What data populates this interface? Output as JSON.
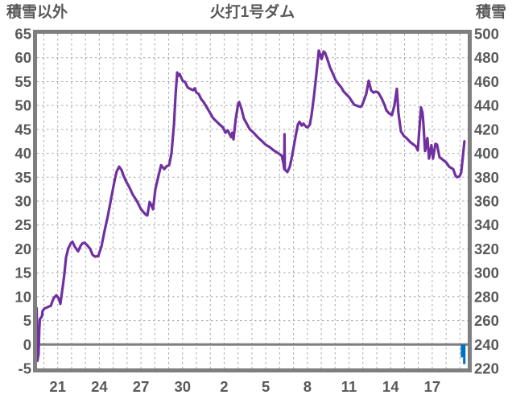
{
  "chart_data": {
    "type": "line",
    "title": "火打1号ダム",
    "left_axis": {
      "title": "積雪以外",
      "min": -5,
      "max": 65,
      "step": 5,
      "tick_labels": [
        "65",
        "60",
        "55",
        "50",
        "45",
        "40",
        "35",
        "30",
        "25",
        "20",
        "15",
        "10",
        "5",
        "0",
        "-5"
      ]
    },
    "right_axis": {
      "title": "積雪",
      "min": 220,
      "max": 500,
      "step": 20,
      "tick_labels": [
        "500",
        "480",
        "460",
        "440",
        "420",
        "400",
        "380",
        "360",
        "340",
        "320",
        "300",
        "280",
        "260",
        "240",
        "220"
      ]
    },
    "x_axis": {
      "tick_labels": [
        "21",
        "24",
        "27",
        "30",
        "2",
        "5",
        "8",
        "11",
        "14",
        "17"
      ],
      "tick_day_offsets": [
        0,
        3,
        6,
        9,
        12,
        15,
        18,
        21,
        24,
        27
      ],
      "grid_day_min": -1,
      "grid_day_max": 29,
      "grid_every_days": 1
    },
    "zero_line_value": 0,
    "grid_on": true,
    "series": [
      {
        "id": "snow-depth-line",
        "color": "#7030A0",
        "width": 3.2,
        "points": [
          [
            -1.52,
            7.6
          ],
          [
            -1.46,
            -3.4
          ],
          [
            -1.38,
            -2.0
          ],
          [
            -1.33,
            3.1
          ],
          [
            -1.29,
            5.3
          ],
          [
            -1.14,
            5.9
          ],
          [
            -1.09,
            7.0
          ],
          [
            -0.97,
            7.5
          ],
          [
            -0.68,
            7.9
          ],
          [
            -0.5,
            8.1
          ],
          [
            -0.39,
            9.0
          ],
          [
            -0.27,
            9.8
          ],
          [
            -0.1,
            10.3
          ],
          [
            0.08,
            9.6
          ],
          [
            0.19,
            8.5
          ],
          [
            0.37,
            12.3
          ],
          [
            0.48,
            14.8
          ],
          [
            0.6,
            18.2
          ],
          [
            0.77,
            20.2
          ],
          [
            0.95,
            21.2
          ],
          [
            1.06,
            21.5
          ],
          [
            1.24,
            20.4
          ],
          [
            1.47,
            19.5
          ],
          [
            1.64,
            20.6
          ],
          [
            1.76,
            21.1
          ],
          [
            1.93,
            21.3
          ],
          [
            2.11,
            20.8
          ],
          [
            2.34,
            20.0
          ],
          [
            2.51,
            18.8
          ],
          [
            2.69,
            18.4
          ],
          [
            2.92,
            18.5
          ],
          [
            3.15,
            20.5
          ],
          [
            3.38,
            23.8
          ],
          [
            3.62,
            27.0
          ],
          [
            3.85,
            30.5
          ],
          [
            4.08,
            34.0
          ],
          [
            4.25,
            36.2
          ],
          [
            4.43,
            37.2
          ],
          [
            4.6,
            36.5
          ],
          [
            4.72,
            35.5
          ],
          [
            4.95,
            34.0
          ],
          [
            5.18,
            32.8
          ],
          [
            5.42,
            31.3
          ],
          [
            5.71,
            30.0
          ],
          [
            6.0,
            28.3
          ],
          [
            6.34,
            27.2
          ],
          [
            6.46,
            27.0
          ],
          [
            6.63,
            29.8
          ],
          [
            6.75,
            29.2
          ],
          [
            6.87,
            28.3
          ],
          [
            7.04,
            32.5
          ],
          [
            7.27,
            35.4
          ],
          [
            7.45,
            37.5
          ],
          [
            7.68,
            36.7
          ],
          [
            7.85,
            37.3
          ],
          [
            8.03,
            37.5
          ],
          [
            8.2,
            40.0
          ],
          [
            8.38,
            46.0
          ],
          [
            8.49,
            52.0
          ],
          [
            8.61,
            56.9
          ],
          [
            8.69,
            56.2
          ],
          [
            8.78,
            56.6
          ],
          [
            9.01,
            55.2
          ],
          [
            9.19,
            54.9
          ],
          [
            9.36,
            53.8
          ],
          [
            9.59,
            53.4
          ],
          [
            9.77,
            53.2
          ],
          [
            9.88,
            53.6
          ],
          [
            10.0,
            52.7
          ],
          [
            10.17,
            52.4
          ],
          [
            10.35,
            51.3
          ],
          [
            10.52,
            50.7
          ],
          [
            10.75,
            49.6
          ],
          [
            11.04,
            48.2
          ],
          [
            11.22,
            47.3
          ],
          [
            11.51,
            46.5
          ],
          [
            11.68,
            46.0
          ],
          [
            11.92,
            45.4
          ],
          [
            12.09,
            44.3
          ],
          [
            12.26,
            44.8
          ],
          [
            12.5,
            43.4
          ],
          [
            12.58,
            44.3
          ],
          [
            12.67,
            42.9
          ],
          [
            12.84,
            47.3
          ],
          [
            13.02,
            50.5
          ],
          [
            13.08,
            50.7
          ],
          [
            13.25,
            49.3
          ],
          [
            13.42,
            47.3
          ],
          [
            13.66,
            46.0
          ],
          [
            13.83,
            45.1
          ],
          [
            14.12,
            44.3
          ],
          [
            14.41,
            43.4
          ],
          [
            14.7,
            42.6
          ],
          [
            14.99,
            41.8
          ],
          [
            15.28,
            41.3
          ],
          [
            15.57,
            40.6
          ],
          [
            15.86,
            40.1
          ],
          [
            16.15,
            39.5
          ],
          [
            16.27,
            38.0
          ],
          [
            16.33,
            36.7
          ],
          [
            16.35,
            44.0
          ],
          [
            16.37,
            36.6
          ],
          [
            16.44,
            36.4
          ],
          [
            16.56,
            36.1
          ],
          [
            16.73,
            37.2
          ],
          [
            16.91,
            39.7
          ],
          [
            17.14,
            43.4
          ],
          [
            17.31,
            46.0
          ],
          [
            17.43,
            46.6
          ],
          [
            17.6,
            45.8
          ],
          [
            17.72,
            46.2
          ],
          [
            17.89,
            45.6
          ],
          [
            18.01,
            45.4
          ],
          [
            18.18,
            46.0
          ],
          [
            18.3,
            48.0
          ],
          [
            18.47,
            51.8
          ],
          [
            18.59,
            55.0
          ],
          [
            18.7,
            58.0
          ],
          [
            18.82,
            61.5
          ],
          [
            18.94,
            60.5
          ],
          [
            19.02,
            59.7
          ],
          [
            19.17,
            61.3
          ],
          [
            19.28,
            61.0
          ],
          [
            19.46,
            59.5
          ],
          [
            19.63,
            58.0
          ],
          [
            19.86,
            56.5
          ],
          [
            20.04,
            55.3
          ],
          [
            20.21,
            54.6
          ],
          [
            20.44,
            53.8
          ],
          [
            20.62,
            52.9
          ],
          [
            20.79,
            52.4
          ],
          [
            21.02,
            51.7
          ],
          [
            21.2,
            50.9
          ],
          [
            21.37,
            50.2
          ],
          [
            21.6,
            49.9
          ],
          [
            21.84,
            49.7
          ],
          [
            21.95,
            50.1
          ],
          [
            22.24,
            52.4
          ],
          [
            22.42,
            55.2
          ],
          [
            22.59,
            53.2
          ],
          [
            22.77,
            52.7
          ],
          [
            22.94,
            52.9
          ],
          [
            23.11,
            52.7
          ],
          [
            23.35,
            51.5
          ],
          [
            23.58,
            50.0
          ],
          [
            23.69,
            49.0
          ],
          [
            23.87,
            48.4
          ],
          [
            24.1,
            48.0
          ],
          [
            24.27,
            50.0
          ],
          [
            24.45,
            53.5
          ],
          [
            24.56,
            48.5
          ],
          [
            24.74,
            44.6
          ],
          [
            24.97,
            43.6
          ],
          [
            25.14,
            43.2
          ],
          [
            25.43,
            42.3
          ],
          [
            25.67,
            41.8
          ],
          [
            25.84,
            41.4
          ],
          [
            25.96,
            40.6
          ],
          [
            26.07,
            45.0
          ],
          [
            26.19,
            49.6
          ],
          [
            26.3,
            48.5
          ],
          [
            26.36,
            46.3
          ],
          [
            26.48,
            40.5
          ],
          [
            26.65,
            43.2
          ],
          [
            26.77,
            38.9
          ],
          [
            26.94,
            41.7
          ],
          [
            27.06,
            38.9
          ],
          [
            27.23,
            42.0
          ],
          [
            27.35,
            41.8
          ],
          [
            27.52,
            39.2
          ],
          [
            27.75,
            38.7
          ],
          [
            28.04,
            38.0
          ],
          [
            28.22,
            37.2
          ],
          [
            28.51,
            36.7
          ],
          [
            28.68,
            35.3
          ],
          [
            28.8,
            35.0
          ],
          [
            28.97,
            35.2
          ],
          [
            29.09,
            36.0
          ],
          [
            29.2,
            39.0
          ],
          [
            29.32,
            42.5
          ]
        ]
      }
    ],
    "bars": [
      {
        "id": "blue-bar-upper",
        "color": "#0070C0",
        "day_from": 29.06,
        "day_to": 29.4,
        "value_from": -2.7,
        "value_to": 0.0
      },
      {
        "id": "blue-bar-lower",
        "color": "#0070C0",
        "day_from": 29.22,
        "day_to": 29.4,
        "value_from": -4.1,
        "value_to": -2.7
      }
    ],
    "style": {
      "background": "#ffffff",
      "border_color": "#7f7f7f",
      "grid_color": "#a6a6a6",
      "zero_line_color": "#7f7f7f",
      "text_color": "#595959",
      "line_color": "#7030A0",
      "bar_color": "#0070C0"
    }
  }
}
